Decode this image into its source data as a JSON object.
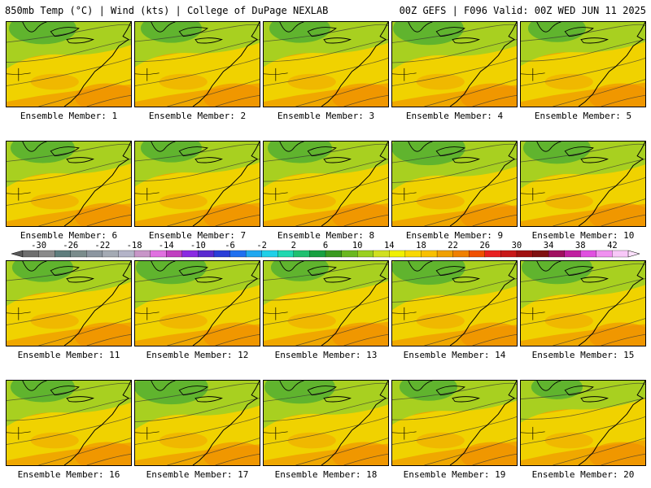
{
  "header": {
    "title_left": "850mb Temp (°C) | Wind (kts) | College of DuPage NEXLAB",
    "title_right": "00Z GEFS | F096 Valid: 00Z WED JUN 11 2025"
  },
  "members": [
    {
      "label": "Ensemble Member: 1",
      "warmth": 0.45
    },
    {
      "label": "Ensemble Member: 2",
      "warmth": 0.55
    },
    {
      "label": "Ensemble Member: 3",
      "warmth": 0.55
    },
    {
      "label": "Ensemble Member: 4",
      "warmth": 0.4
    },
    {
      "label": "Ensemble Member: 5",
      "warmth": 0.6
    },
    {
      "label": "Ensemble Member: 6",
      "warmth": 0.5
    },
    {
      "label": "Ensemble Member: 7",
      "warmth": 0.55
    },
    {
      "label": "Ensemble Member: 8",
      "warmth": 0.5
    },
    {
      "label": "Ensemble Member: 9",
      "warmth": 0.35
    },
    {
      "label": "Ensemble Member: 10",
      "warmth": 0.45
    },
    {
      "label": "Ensemble Member: 11",
      "warmth": 0.55
    },
    {
      "label": "Ensemble Member: 12",
      "warmth": 0.4
    },
    {
      "label": "Ensemble Member: 13",
      "warmth": 0.6
    },
    {
      "label": "Ensemble Member: 14",
      "warmth": 0.35
    },
    {
      "label": "Ensemble Member: 15",
      "warmth": 0.4
    },
    {
      "label": "Ensemble Member: 16",
      "warmth": 0.5
    },
    {
      "label": "Ensemble Member: 17",
      "warmth": 0.35
    },
    {
      "label": "Ensemble Member: 18",
      "warmth": 0.4
    },
    {
      "label": "Ensemble Member: 19",
      "warmth": 0.6
    },
    {
      "label": "Ensemble Member: 20",
      "warmth": 0.7
    }
  ],
  "colorbar": {
    "labels": [
      "-30",
      "-26",
      "-22",
      "-18",
      "-14",
      "-10",
      "-6",
      "-2",
      "2",
      "6",
      "10",
      "14",
      "18",
      "22",
      "26",
      "30",
      "34",
      "38",
      "42"
    ],
    "colors": [
      "#6e6e6e",
      "#8a8a8a",
      "#5f7e7e",
      "#7a8c8c",
      "#8c96a0",
      "#a4aab4",
      "#b4b4c8",
      "#c896c8",
      "#e070e0",
      "#c040c0",
      "#8a2be2",
      "#5a2ad0",
      "#2a3ed8",
      "#2070f0",
      "#20a8f0",
      "#20d0e8",
      "#20d8b0",
      "#20c070",
      "#18a040",
      "#3a9a20",
      "#6ab820",
      "#9ad020",
      "#d0e020",
      "#f0f000",
      "#f8d800",
      "#f8c000",
      "#f0a000",
      "#f08000",
      "#f05000",
      "#e82020",
      "#c81818",
      "#a01010",
      "#801010",
      "#a01060",
      "#c020a0",
      "#e050e0",
      "#f090f0",
      "#f8c8f8"
    ]
  }
}
